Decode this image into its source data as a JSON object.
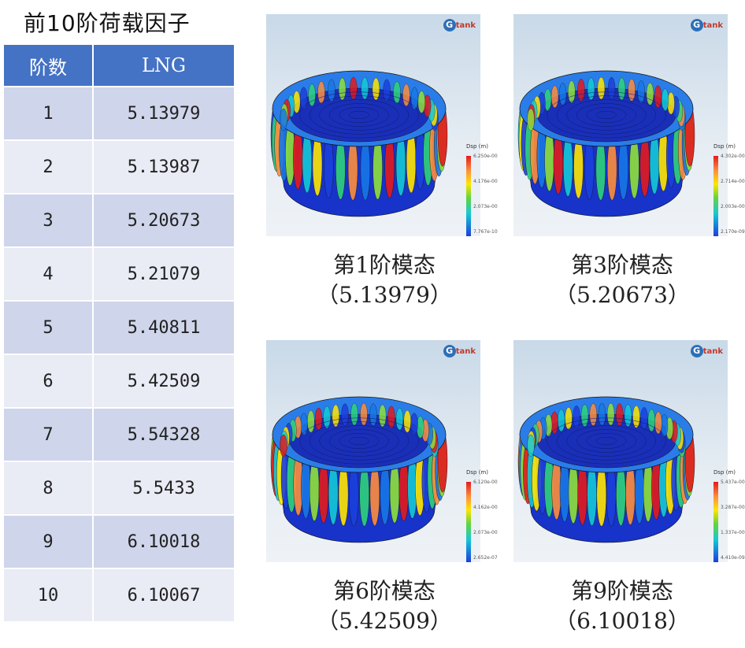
{
  "title": "前10阶荷载因子",
  "table": {
    "headers": [
      "阶数",
      "LNG"
    ],
    "rows": [
      [
        "1",
        "5.13979"
      ],
      [
        "2",
        "5.13987"
      ],
      [
        "3",
        "5.20673"
      ],
      [
        "4",
        "5.21079"
      ],
      [
        "5",
        "5.40811"
      ],
      [
        "6",
        "5.42509"
      ],
      [
        "7",
        "5.54328"
      ],
      [
        "8",
        "5.5433"
      ],
      [
        "9",
        "6.10018"
      ],
      [
        "10",
        "6.10067"
      ]
    ]
  },
  "logo_text": "Gtank",
  "legend_label": "Dsp (m)",
  "colors": {
    "header": "#4472c4",
    "row_odd": "#cfd5ea",
    "row_even": "#e9ebf5"
  },
  "panels": [
    {
      "mode_label": "第1阶模态",
      "value_label": "（5.13979）",
      "legend_ticks": [
        "6.250e-00",
        "4.176e-00",
        "2.073e-00",
        "7.767e-10"
      ]
    },
    {
      "mode_label": "第3阶模态",
      "value_label": "（5.20673）",
      "legend_ticks": [
        "4.302e-00",
        "2.714e-00",
        "2.003e-00",
        "2.170e-09"
      ]
    },
    {
      "mode_label": "第6阶模态",
      "value_label": "（5.42509）",
      "legend_ticks": [
        "6.120e-00",
        "4.162e-00",
        "2.073e-00",
        "2.652e-07"
      ]
    },
    {
      "mode_label": "第9阶模态",
      "value_label": "（6.10018）",
      "legend_ticks": [
        "5.437e-00",
        "3.287e-00",
        "1.337e-00",
        "4.410e-09"
      ]
    }
  ]
}
